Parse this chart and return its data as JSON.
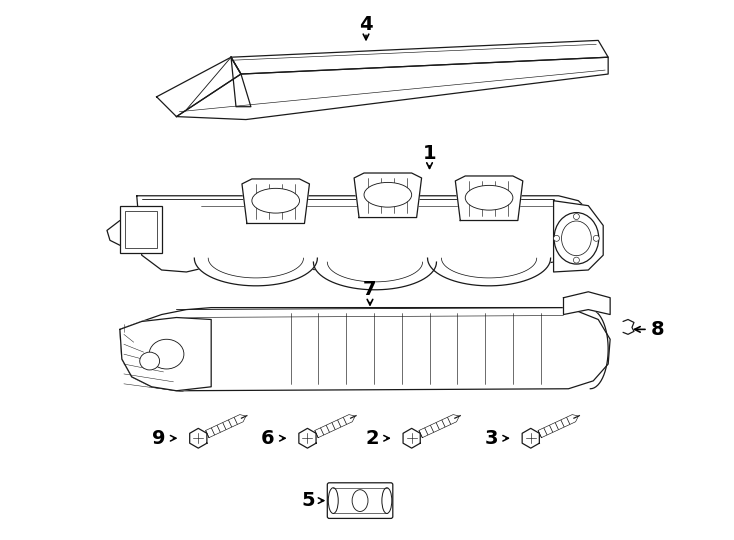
{
  "background_color": "#ffffff",
  "line_color": "#1a1a1a",
  "fig_width": 7.34,
  "fig_height": 5.4,
  "dpi": 100,
  "lw": 0.9
}
